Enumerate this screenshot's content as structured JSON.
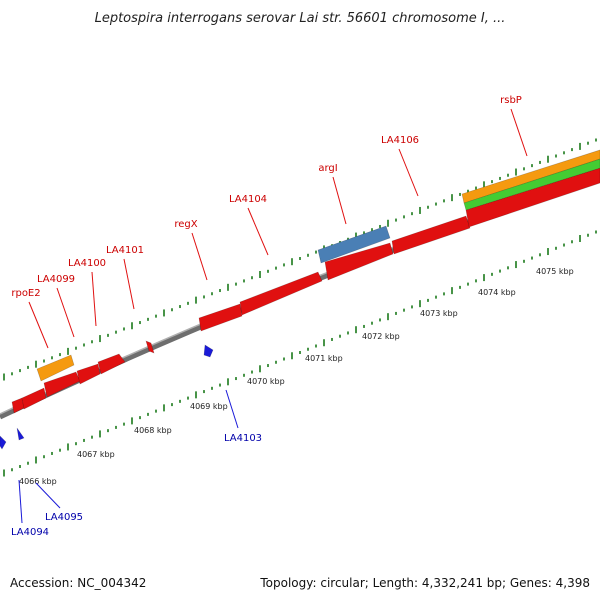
{
  "title": "Leptospira interrogans serovar Lai str. 56601 chromosome I, ...",
  "footer": {
    "accession": "Accession: NC_004342",
    "summary": "Topology: circular; Length: 4,332,241 bp; Genes: 4,398"
  },
  "colors": {
    "forward_gene": "#e01010",
    "reverse_gene": "#1a1ad8",
    "backbone": "#7a7a7a",
    "tick": "#1a7a1a",
    "feature_orange": "#f59a10",
    "feature_green": "#44cc33",
    "feature_blue": "#4a7fb5"
  },
  "scale_ticks": [
    "4066 kbp",
    "4067 kbp",
    "4068 kbp",
    "4069 kbp",
    "4070 kbp",
    "4071 kbp",
    "4072 kbp",
    "4073 kbp",
    "4074 kbp",
    "4075 kbp"
  ],
  "forward_gene_labels": [
    "rpoE2",
    "LA4099",
    "LA4100",
    "LA4101",
    "regX",
    "LA4104",
    "argI",
    "LA4106",
    "rsbP"
  ],
  "reverse_gene_labels": [
    "LA4094",
    "LA4095",
    "LA4103"
  ]
}
